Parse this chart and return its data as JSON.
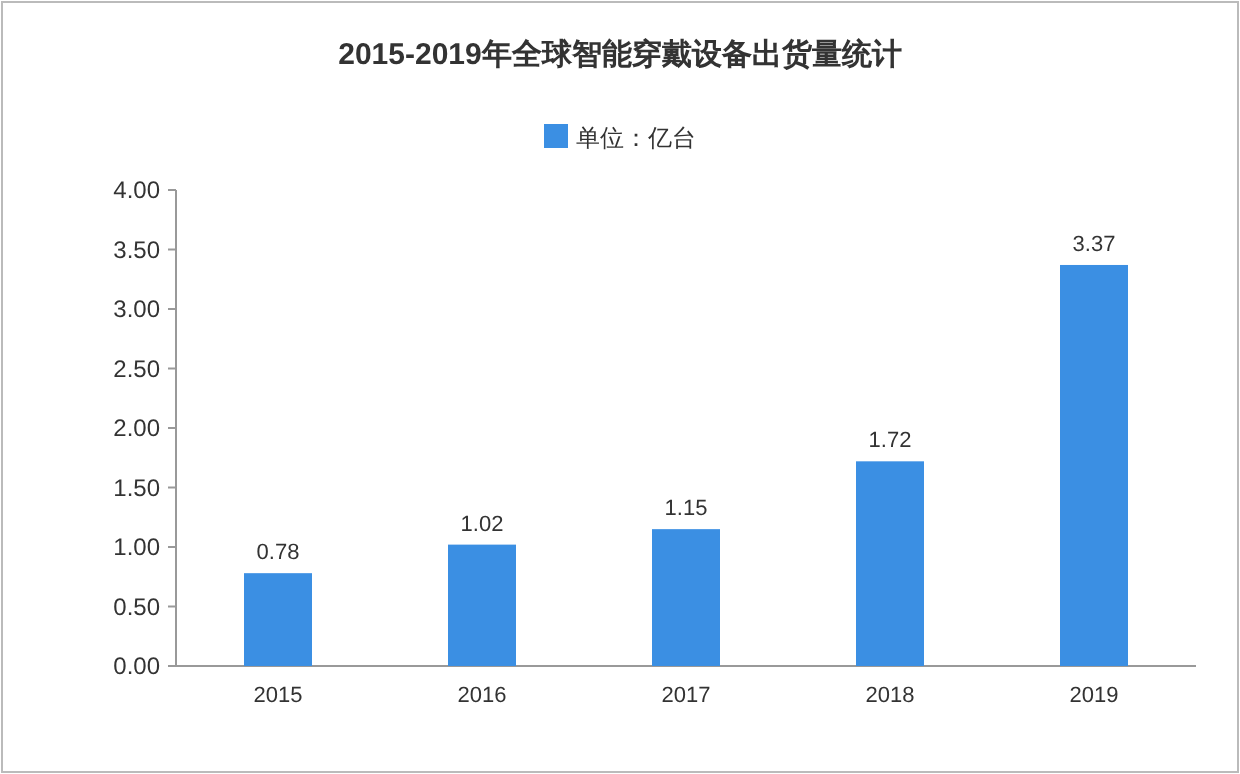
{
  "chart_data": {
    "type": "bar",
    "title": "2015-2019年全球智能穿戴设备出货量统计",
    "categories": [
      "2015",
      "2016",
      "2017",
      "2018",
      "2019"
    ],
    "series": [
      {
        "name": "单位：亿台",
        "color": "#3b8fe3",
        "values": [
          0.78,
          1.02,
          1.15,
          1.72,
          3.37
        ]
      }
    ],
    "ylim": [
      0,
      4
    ],
    "yticks": [
      {
        "value": 0,
        "label": "0.00"
      },
      {
        "value": 0.5,
        "label": "0.50"
      },
      {
        "value": 1,
        "label": "1.00"
      },
      {
        "value": 1.5,
        "label": "1.50"
      },
      {
        "value": 2,
        "label": "2.00"
      },
      {
        "value": 2.5,
        "label": "2.50"
      },
      {
        "value": 3,
        "label": "3.00"
      },
      {
        "value": 3.5,
        "label": "3.50"
      },
      {
        "value": 4,
        "label": "4.00"
      }
    ],
    "data_labels": true,
    "legend": "top"
  }
}
